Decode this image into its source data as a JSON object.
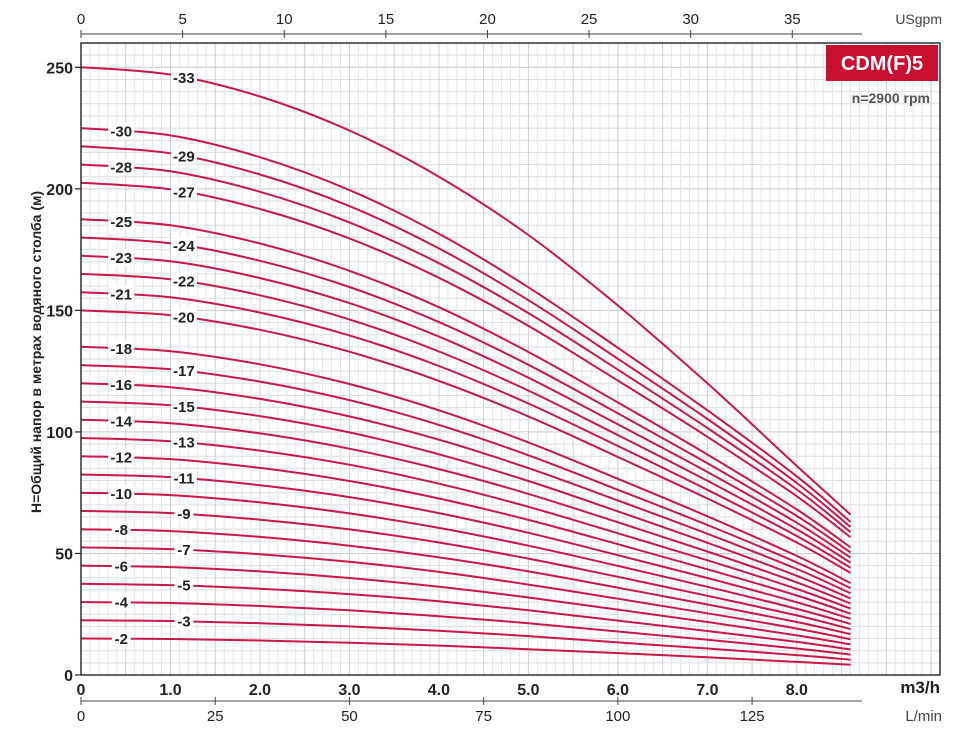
{
  "chart_data": {
    "type": "line",
    "title": "",
    "badge": {
      "text": "CDM(F)5",
      "color": "#c8102e"
    },
    "speed_note": "n=2900 rpm",
    "ylabel": "H=Общий напор в метрах водяного столба (м)",
    "xlabel": "m3/h",
    "x_top_unit": "USgpm",
    "x_bottom_unit": "L/min",
    "xlim": [
      0,
      9.6
    ],
    "ylim": [
      0,
      260
    ],
    "grid": true,
    "curve_color": "#c8184a",
    "x_ticks_m3h": [
      "0",
      "1.0",
      "2.0",
      "3.0",
      "4.0",
      "5.0",
      "6.0",
      "7.0",
      "8.0"
    ],
    "x_ticks_usgpm": [
      "0",
      "5",
      "10",
      "15",
      "20",
      "25",
      "30",
      "35"
    ],
    "x_ticks_lmin": [
      "0",
      "25",
      "50",
      "75",
      "100",
      "125"
    ],
    "y_ticks": [
      "0",
      "50",
      "100",
      "150",
      "200",
      "250"
    ],
    "series": [
      {
        "name": "-2",
        "x": [
          0,
          1,
          2,
          3,
          4,
          5,
          6,
          7,
          8,
          8.6
        ],
        "y": [
          15,
          14.8,
          14.2,
          13.3,
          12.1,
          10.6,
          9.0,
          7.3,
          5.4,
          4.2
        ]
      },
      {
        "name": "-3",
        "x": [
          0,
          1,
          2,
          3,
          4,
          5,
          6,
          7,
          8,
          8.6
        ],
        "y": [
          22.5,
          22.2,
          21.3,
          20.0,
          18.2,
          16.0,
          13.4,
          10.9,
          8.2,
          6.3
        ]
      },
      {
        "name": "-4",
        "x": [
          0,
          1,
          2,
          3,
          4,
          5,
          6,
          7,
          8,
          8.6
        ],
        "y": [
          30,
          29.6,
          28.4,
          26.6,
          24.2,
          21.3,
          17.9,
          14.5,
          10.9,
          8.4
        ]
      },
      {
        "name": "-5",
        "x": [
          0,
          1,
          2,
          3,
          4,
          5,
          6,
          7,
          8,
          8.6
        ],
        "y": [
          37.5,
          37.0,
          35.5,
          33.3,
          30.3,
          26.6,
          22.4,
          18.1,
          13.6,
          10.5
        ]
      },
      {
        "name": "-6",
        "x": [
          0,
          1,
          2,
          3,
          4,
          5,
          6,
          7,
          8,
          8.6
        ],
        "y": [
          45,
          44.4,
          42.6,
          39.9,
          36.3,
          31.9,
          26.9,
          21.8,
          16.3,
          12.6
        ]
      },
      {
        "name": "-7",
        "x": [
          0,
          1,
          2,
          3,
          4,
          5,
          6,
          7,
          8,
          8.6
        ],
        "y": [
          52.5,
          51.8,
          49.7,
          46.6,
          42.4,
          37.2,
          31.4,
          25.4,
          19.1,
          14.7
        ]
      },
      {
        "name": "-8",
        "x": [
          0,
          1,
          2,
          3,
          4,
          5,
          6,
          7,
          8,
          8.6
        ],
        "y": [
          60,
          59.2,
          56.8,
          53.2,
          48.4,
          42.6,
          35.9,
          29.0,
          21.8,
          16.8
        ]
      },
      {
        "name": "-9",
        "x": [
          0,
          1,
          2,
          3,
          4,
          5,
          6,
          7,
          8,
          8.6
        ],
        "y": [
          67.5,
          66.6,
          63.9,
          59.9,
          54.5,
          47.9,
          40.4,
          32.6,
          24.5,
          18.9
        ]
      },
      {
        "name": "-10",
        "x": [
          0,
          1,
          2,
          3,
          4,
          5,
          6,
          7,
          8,
          8.6
        ],
        "y": [
          75,
          74.0,
          71.0,
          66.5,
          60.5,
          53.2,
          44.9,
          36.3,
          27.2,
          21.0
        ]
      },
      {
        "name": "-11",
        "x": [
          0,
          1,
          2,
          3,
          4,
          5,
          6,
          7,
          8,
          8.6
        ],
        "y": [
          82.5,
          81.4,
          78.1,
          73.2,
          66.6,
          58.5,
          49.3,
          39.9,
          29.9,
          23.1
        ]
      },
      {
        "name": "-12",
        "x": [
          0,
          1,
          2,
          3,
          4,
          5,
          6,
          7,
          8,
          8.6
        ],
        "y": [
          90,
          88.8,
          85.2,
          79.8,
          72.6,
          63.8,
          53.8,
          43.5,
          32.7,
          25.2
        ]
      },
      {
        "name": "-13",
        "x": [
          0,
          1,
          2,
          3,
          4,
          5,
          6,
          7,
          8,
          8.6
        ],
        "y": [
          97.5,
          96.2,
          92.3,
          86.5,
          78.7,
          69.2,
          58.3,
          47.2,
          35.4,
          27.3
        ]
      },
      {
        "name": "-14",
        "x": [
          0,
          1,
          2,
          3,
          4,
          5,
          6,
          7,
          8,
          8.6
        ],
        "y": [
          105,
          103.6,
          99.4,
          93.1,
          84.7,
          74.5,
          62.8,
          50.8,
          38.1,
          29.4
        ]
      },
      {
        "name": "-15",
        "x": [
          0,
          1,
          2,
          3,
          4,
          5,
          6,
          7,
          8,
          8.6
        ],
        "y": [
          112.5,
          111.0,
          106.5,
          99.8,
          90.8,
          79.8,
          67.3,
          54.4,
          40.8,
          31.5
        ]
      },
      {
        "name": "-16",
        "x": [
          0,
          1,
          2,
          3,
          4,
          5,
          6,
          7,
          8,
          8.6
        ],
        "y": [
          120,
          118.4,
          113.6,
          106.4,
          96.8,
          85.1,
          71.8,
          58.1,
          43.6,
          33.6
        ]
      },
      {
        "name": "-17",
        "x": [
          0,
          1,
          2,
          3,
          4,
          5,
          6,
          7,
          8,
          8.6
        ],
        "y": [
          127.5,
          125.8,
          120.7,
          113.1,
          102.9,
          90.4,
          76.2,
          61.7,
          46.3,
          35.7
        ]
      },
      {
        "name": "-18",
        "x": [
          0,
          1,
          2,
          3,
          4,
          5,
          6,
          7,
          8,
          8.6
        ],
        "y": [
          135,
          133.2,
          127.8,
          119.7,
          108.9,
          95.7,
          80.7,
          65.3,
          49.0,
          37.8
        ]
      },
      {
        "name": "-20",
        "x": [
          0,
          1,
          2,
          3,
          4,
          5,
          6,
          7,
          8,
          8.6
        ],
        "y": [
          150,
          148.0,
          142.0,
          133.0,
          121.0,
          106.4,
          89.7,
          72.6,
          54.5,
          42.0
        ]
      },
      {
        "name": "-21",
        "x": [
          0,
          1,
          2,
          3,
          4,
          5,
          6,
          7,
          8,
          8.6
        ],
        "y": [
          157.5,
          155.4,
          149.1,
          139.7,
          127.1,
          111.7,
          94.2,
          76.2,
          57.2,
          44.1
        ]
      },
      {
        "name": "-22",
        "x": [
          0,
          1,
          2,
          3,
          4,
          5,
          6,
          7,
          8,
          8.6
        ],
        "y": [
          165,
          162.8,
          156.2,
          146.3,
          133.1,
          117.0,
          98.7,
          79.9,
          59.9,
          46.2
        ]
      },
      {
        "name": "-23",
        "x": [
          0,
          1,
          2,
          3,
          4,
          5,
          6,
          7,
          8,
          8.6
        ],
        "y": [
          172.5,
          170.2,
          163.3,
          153.0,
          139.2,
          122.3,
          103.1,
          83.5,
          62.6,
          48.3
        ]
      },
      {
        "name": "-24",
        "x": [
          0,
          1,
          2,
          3,
          4,
          5,
          6,
          7,
          8,
          8.6
        ],
        "y": [
          180,
          177.6,
          170.4,
          159.6,
          145.2,
          127.6,
          107.6,
          87.1,
          65.4,
          50.4
        ]
      },
      {
        "name": "-25",
        "x": [
          0,
          1,
          2,
          3,
          4,
          5,
          6,
          7,
          8,
          8.6
        ],
        "y": [
          187.5,
          185.0,
          177.5,
          166.3,
          151.3,
          132.9,
          112.1,
          90.7,
          68.1,
          52.5
        ]
      },
      {
        "name": "-27",
        "x": [
          0,
          1,
          2,
          3,
          4,
          5,
          6,
          7,
          8,
          8.6
        ],
        "y": [
          202.5,
          199.8,
          191.7,
          179.6,
          163.4,
          143.6,
          121.1,
          98.0,
          73.5,
          56.7
        ]
      },
      {
        "name": "-28",
        "x": [
          0,
          1,
          2,
          3,
          4,
          5,
          6,
          7,
          8,
          8.6
        ],
        "y": [
          210,
          207.2,
          198.8,
          186.2,
          169.4,
          148.9,
          125.6,
          101.6,
          76.3,
          58.8
        ]
      },
      {
        "name": "-29",
        "x": [
          0,
          1,
          2,
          3,
          4,
          5,
          6,
          7,
          8,
          8.6
        ],
        "y": [
          217.5,
          214.6,
          205.9,
          192.9,
          175.5,
          154.2,
          130.1,
          105.3,
          79.0,
          60.9
        ]
      },
      {
        "name": "-30",
        "x": [
          0,
          1,
          2,
          3,
          4,
          5,
          6,
          7,
          8,
          8.6
        ],
        "y": [
          225,
          222.0,
          213.0,
          199.5,
          181.5,
          159.5,
          134.6,
          108.9,
          81.7,
          63.0
        ]
      },
      {
        "name": "-33",
        "x": [
          0,
          1,
          2,
          3,
          4,
          5,
          6,
          7,
          8,
          8.6
        ],
        "y": [
          250,
          247.0,
          238.0,
          224.0,
          205.0,
          181.0,
          152.0,
          120.0,
          86.0,
          66.0
        ]
      }
    ]
  }
}
